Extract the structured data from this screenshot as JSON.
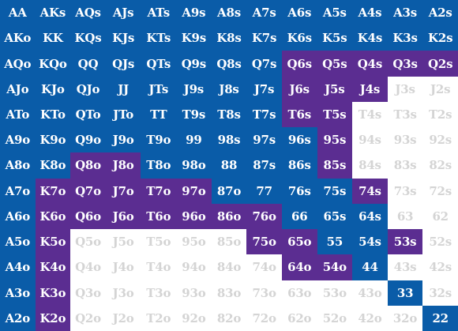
{
  "colors": {
    "b": "#0a5ca8",
    "p": "#5b2d91",
    "w": "#ffffff",
    "text_on_fill": "#ffffff",
    "text_on_white": "#d4d4d4"
  },
  "legend_codes": {
    "b": "blue",
    "p": "purple",
    "w": "white"
  },
  "rows": [
    [
      "AA",
      "AKs",
      "AQs",
      "AJs",
      "ATs",
      "A9s",
      "A8s",
      "A7s",
      "A6s",
      "A5s",
      "A4s",
      "A3s",
      "A2s"
    ],
    [
      "AKo",
      "KK",
      "KQs",
      "KJs",
      "KTs",
      "K9s",
      "K8s",
      "K7s",
      "K6s",
      "K5s",
      "K4s",
      "K3s",
      "K2s"
    ],
    [
      "AQo",
      "KQo",
      "QQ",
      "QJs",
      "QTs",
      "Q9s",
      "Q8s",
      "Q7s",
      "Q6s",
      "Q5s",
      "Q4s",
      "Q3s",
      "Q2s"
    ],
    [
      "AJo",
      "KJo",
      "QJo",
      "JJ",
      "JTs",
      "J9s",
      "J8s",
      "J7s",
      "J6s",
      "J5s",
      "J4s",
      "J3s",
      "J2s"
    ],
    [
      "ATo",
      "KTo",
      "QTo",
      "JTo",
      "TT",
      "T9s",
      "T8s",
      "T7s",
      "T6s",
      "T5s",
      "T4s",
      "T3s",
      "T2s"
    ],
    [
      "A9o",
      "K9o",
      "Q9o",
      "J9o",
      "T9o",
      "99",
      "98s",
      "97s",
      "96s",
      "95s",
      "94s",
      "93s",
      "92s"
    ],
    [
      "A8o",
      "K8o",
      "Q8o",
      "J8o",
      "T8o",
      "98o",
      "88",
      "87s",
      "86s",
      "85s",
      "84s",
      "83s",
      "82s"
    ],
    [
      "A7o",
      "K7o",
      "Q7o",
      "J7o",
      "T7o",
      "97o",
      "87o",
      "77",
      "76s",
      "75s",
      "74s",
      "73s",
      "72s"
    ],
    [
      "A6o",
      "K6o",
      "Q6o",
      "J6o",
      "T6o",
      "96o",
      "86o",
      "76o",
      "66",
      "65s",
      "64s",
      "63",
      "62"
    ],
    [
      "A5o",
      "K5o",
      "Q5o",
      "J5o",
      "T5o",
      "95o",
      "85o",
      "75o",
      "65o",
      "55",
      "54s",
      "53s",
      "52s"
    ],
    [
      "A4o",
      "K4o",
      "Q4o",
      "J4o",
      "T4o",
      "94o",
      "84o",
      "74o",
      "64o",
      "54o",
      "44",
      "43s",
      "42s"
    ],
    [
      "A3o",
      "K3o",
      "Q3o",
      "J3o",
      "T3o",
      "93o",
      "83o",
      "73o",
      "63o",
      "53o",
      "43o",
      "33",
      "32s"
    ],
    [
      "A2o",
      "K2o",
      "Q2o",
      "J2o",
      "T2o",
      "92o",
      "82o",
      "72o",
      "62o",
      "52o",
      "42o",
      "32o",
      "22"
    ]
  ],
  "fills": [
    [
      "b",
      "b",
      "b",
      "b",
      "b",
      "b",
      "b",
      "b",
      "b",
      "b",
      "b",
      "b",
      "b"
    ],
    [
      "b",
      "b",
      "b",
      "b",
      "b",
      "b",
      "b",
      "b",
      "b",
      "b",
      "b",
      "b",
      "b"
    ],
    [
      "b",
      "b",
      "b",
      "b",
      "b",
      "b",
      "b",
      "b",
      "p",
      "p",
      "p",
      "p",
      "p"
    ],
    [
      "b",
      "b",
      "b",
      "b",
      "b",
      "b",
      "b",
      "b",
      "p",
      "p",
      "p",
      "w",
      "w"
    ],
    [
      "b",
      "b",
      "b",
      "b",
      "b",
      "b",
      "b",
      "b",
      "p",
      "p",
      "w",
      "w",
      "w"
    ],
    [
      "b",
      "b",
      "b",
      "b",
      "b",
      "b",
      "b",
      "b",
      "b",
      "p",
      "w",
      "w",
      "w"
    ],
    [
      "b",
      "b",
      "p",
      "p",
      "b",
      "b",
      "b",
      "b",
      "b",
      "p",
      "w",
      "w",
      "w"
    ],
    [
      "b",
      "p",
      "p",
      "p",
      "p",
      "p",
      "b",
      "b",
      "b",
      "b",
      "p",
      "w",
      "w"
    ],
    [
      "b",
      "p",
      "p",
      "p",
      "p",
      "p",
      "p",
      "p",
      "b",
      "b",
      "b",
      "w",
      "w"
    ],
    [
      "b",
      "p",
      "w",
      "w",
      "w",
      "w",
      "w",
      "p",
      "p",
      "b",
      "b",
      "p",
      "w"
    ],
    [
      "b",
      "p",
      "w",
      "w",
      "w",
      "w",
      "w",
      "w",
      "p",
      "p",
      "b",
      "w",
      "w"
    ],
    [
      "b",
      "p",
      "w",
      "w",
      "w",
      "w",
      "w",
      "w",
      "w",
      "w",
      "w",
      "b",
      "w"
    ],
    [
      "b",
      "p",
      "w",
      "w",
      "w",
      "w",
      "w",
      "w",
      "w",
      "w",
      "w",
      "w",
      "b"
    ]
  ]
}
